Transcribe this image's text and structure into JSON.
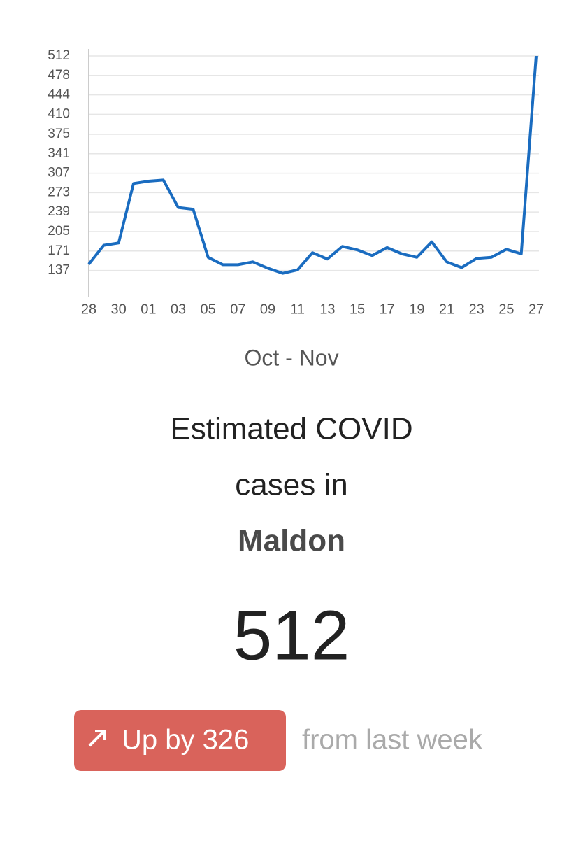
{
  "chart_data": {
    "type": "line",
    "xlabel": "Oct - Nov",
    "categories": [
      "28",
      null,
      "30",
      null,
      "01",
      null,
      "03",
      null,
      "05",
      null,
      "07",
      null,
      "09",
      null,
      "11",
      null,
      "13",
      null,
      "15",
      null,
      "17",
      null,
      "19",
      null,
      "21",
      null,
      "23",
      null,
      "25",
      null,
      "27"
    ],
    "series": [
      {
        "color": "#1a6cc0",
        "values": [
          148,
          181,
          185,
          289,
          293,
          295,
          247,
          244,
          160,
          147,
          147,
          152,
          141,
          132,
          138,
          168,
          157,
          179,
          173,
          163,
          177,
          166,
          160,
          187,
          152,
          142,
          158,
          160,
          174,
          166,
          512
        ]
      }
    ],
    "ylim": [
      90,
      512
    ],
    "yticks": [
      137,
      171,
      205,
      239,
      273,
      307,
      341,
      375,
      410,
      444,
      478,
      512
    ],
    "grid": true
  },
  "summary": {
    "heading": "Estimated COVID",
    "heading_line2": "cases in",
    "place": "Maldon",
    "count": 512,
    "change": "Up by 326",
    "change_note": "from last week"
  }
}
